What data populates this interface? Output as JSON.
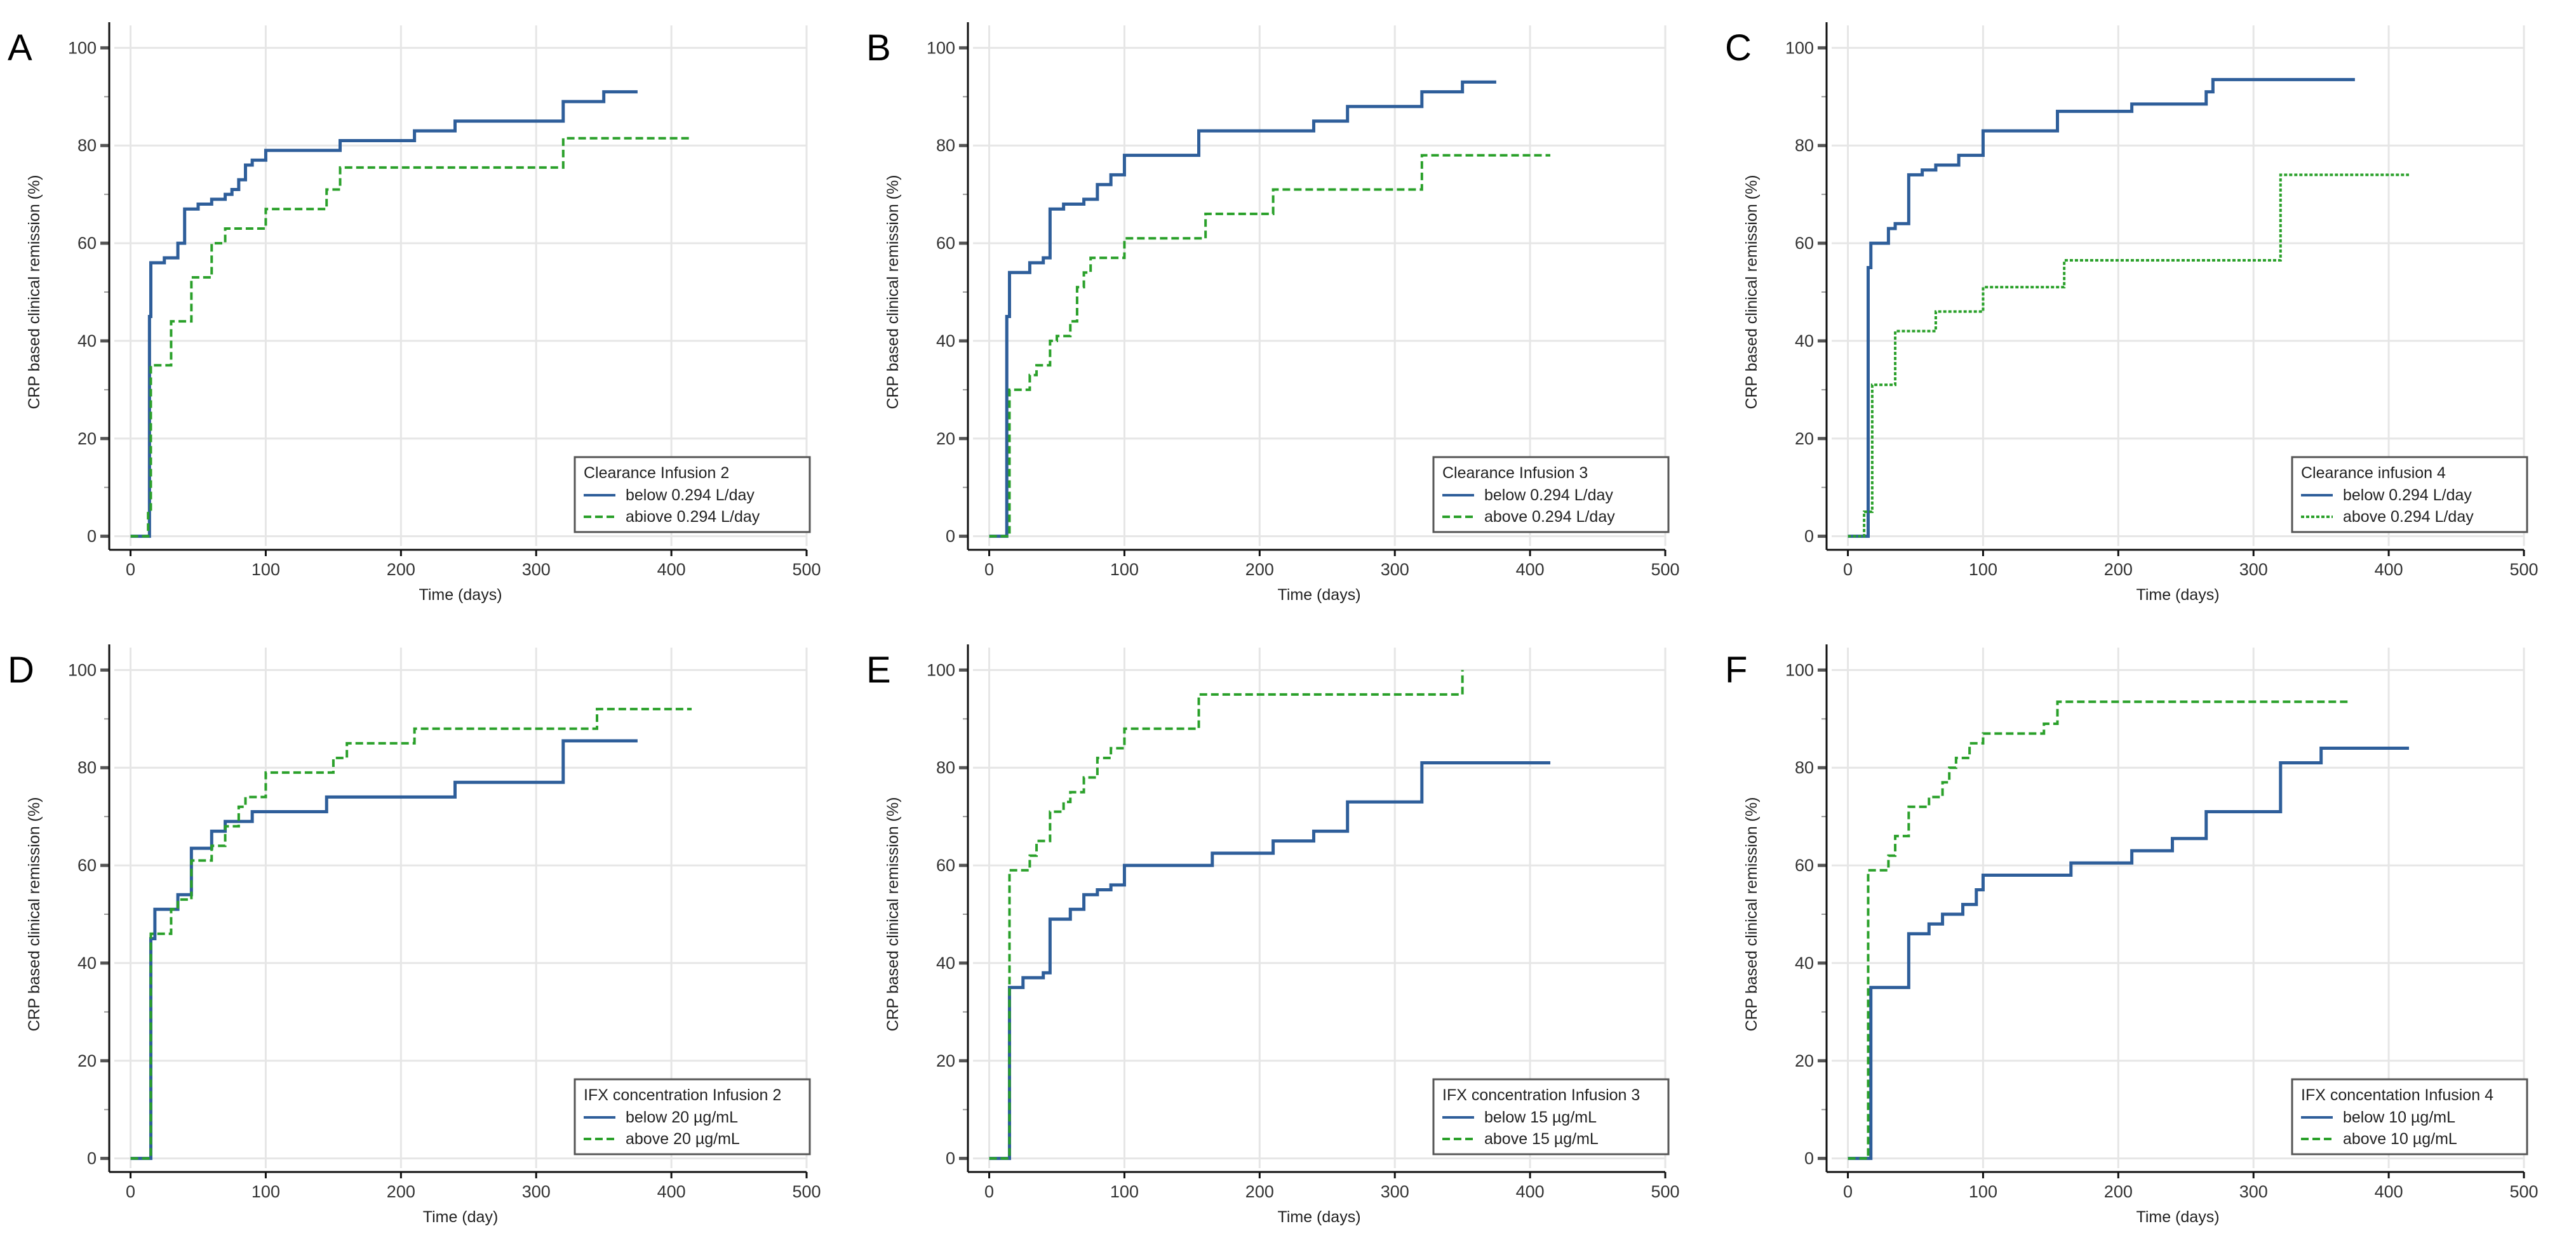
{
  "colors": {
    "below": "#2e5e9a",
    "above": "#2aa02a",
    "grid": "#e6e6e6",
    "axis": "#111111"
  },
  "chart_data": [
    {
      "panel": "A",
      "type": "line",
      "step": true,
      "xlabel": "Time (days)",
      "ylabel": "CRP based clinical remission (%)",
      "xlim": [
        0,
        500
      ],
      "ylim": [
        0,
        100
      ],
      "xticks": [
        "0",
        "100",
        "200",
        "300",
        "400",
        "500"
      ],
      "yticks": [
        "0",
        "20",
        "40",
        "60",
        "80",
        "100"
      ],
      "grid": true,
      "legend_position": "bottom-right",
      "legend_title": "Clearance Infusion 2",
      "series": [
        {
          "name": "below 0.294 L/day",
          "style": "solid",
          "x": [
            0,
            10,
            14,
            15,
            25,
            35,
            40,
            50,
            60,
            70,
            75,
            80,
            85,
            90,
            100,
            155,
            210,
            240,
            320,
            350,
            375
          ],
          "y": [
            0,
            0,
            45,
            56,
            57,
            60,
            67,
            68,
            69,
            70,
            71,
            73,
            76,
            77,
            79,
            81,
            83,
            85,
            89,
            91,
            91
          ]
        },
        {
          "name": "abiove 0.294 L/day",
          "style": "dashed",
          "x": [
            0,
            12,
            13,
            15,
            30,
            45,
            60,
            70,
            100,
            145,
            155,
            320,
            415
          ],
          "y": [
            0,
            0,
            5,
            35,
            44,
            53,
            60,
            63,
            67,
            71,
            75.5,
            81.5,
            81.5
          ]
        }
      ]
    },
    {
      "panel": "B",
      "type": "line",
      "step": true,
      "xlabel": "Time (days)",
      "ylabel": "CRP based clinical remission (%)",
      "xlim": [
        0,
        500
      ],
      "ylim": [
        0,
        100
      ],
      "xticks": [
        "0",
        "100",
        "200",
        "300",
        "400",
        "500"
      ],
      "yticks": [
        "0",
        "20",
        "40",
        "60",
        "80",
        "100"
      ],
      "grid": true,
      "legend_position": "bottom-right",
      "legend_title": "Clearance Infusion 3",
      "series": [
        {
          "name": "below 0.294 L/day",
          "style": "solid",
          "x": [
            0,
            10,
            13,
            15,
            30,
            40,
            45,
            55,
            70,
            80,
            90,
            100,
            155,
            240,
            265,
            320,
            350,
            375
          ],
          "y": [
            0,
            0,
            45,
            54,
            56,
            57,
            67,
            68,
            69,
            72,
            74,
            78,
            83,
            85,
            88,
            91,
            93,
            93
          ]
        },
        {
          "name": "above 0.294 L/day",
          "style": "dashed",
          "x": [
            0,
            12,
            15,
            30,
            35,
            45,
            50,
            60,
            65,
            70,
            75,
            100,
            160,
            210,
            320,
            415
          ],
          "y": [
            0,
            0,
            30,
            33,
            35,
            40,
            41,
            44,
            51,
            54,
            57,
            61,
            66,
            71,
            78,
            78
          ]
        }
      ]
    },
    {
      "panel": "C",
      "type": "line",
      "step": true,
      "xlabel": "Time (days)",
      "ylabel": "CRP based clinical remission (%)",
      "xlim": [
        0,
        500
      ],
      "ylim": [
        0,
        100
      ],
      "xticks": [
        "0",
        "100",
        "200",
        "300",
        "400",
        "500"
      ],
      "yticks": [
        "0",
        "20",
        "40",
        "60",
        "80",
        "100"
      ],
      "grid": true,
      "legend_position": "bottom-right",
      "legend_title": "Clearance infusion 4",
      "series": [
        {
          "name": "below 0.294 L/day",
          "style": "solid",
          "x": [
            0,
            10,
            15,
            17,
            30,
            35,
            45,
            55,
            65,
            82,
            100,
            155,
            210,
            265,
            270,
            375
          ],
          "y": [
            0,
            0,
            55,
            60,
            63,
            64,
            74,
            75,
            76,
            78,
            83,
            87,
            88.5,
            91,
            93.5,
            93.5
          ]
        },
        {
          "name": "above 0.294 L/day",
          "style": "dotted",
          "x": [
            0,
            11,
            12,
            18,
            35,
            65,
            100,
            160,
            320,
            415
          ],
          "y": [
            0,
            0,
            5,
            31,
            42,
            46,
            51,
            56.5,
            74,
            74
          ]
        }
      ]
    },
    {
      "panel": "D",
      "type": "line",
      "step": true,
      "xlabel": "Time (day)",
      "ylabel": "CRP based clinical remission (%)",
      "xlim": [
        0,
        500
      ],
      "ylim": [
        0,
        100
      ],
      "xticks": [
        "0",
        "100",
        "200",
        "300",
        "400",
        "500"
      ],
      "yticks": [
        "0",
        "20",
        "40",
        "60",
        "80",
        "100"
      ],
      "grid": true,
      "legend_position": "bottom-right",
      "legend_title": "IFX concentration Infusion 2",
      "series": [
        {
          "name": "below 20 µg/mL",
          "style": "solid",
          "x": [
            0,
            12,
            15,
            18,
            35,
            45,
            60,
            70,
            90,
            145,
            240,
            320,
            375
          ],
          "y": [
            0,
            0,
            45,
            51,
            54,
            63.5,
            67,
            69,
            71,
            74,
            77,
            85.5,
            85.5
          ]
        },
        {
          "name": "above 20 µg/mL",
          "style": "dashed",
          "x": [
            0,
            12,
            15,
            30,
            35,
            45,
            60,
            70,
            80,
            85,
            100,
            150,
            160,
            210,
            345,
            415
          ],
          "y": [
            0,
            0,
            46,
            51,
            53,
            61,
            64,
            68,
            72,
            74,
            79,
            82,
            85,
            88,
            92,
            92
          ]
        }
      ]
    },
    {
      "panel": "E",
      "type": "line",
      "step": true,
      "xlabel": "Time (days)",
      "ylabel": "CRP based clinical  remission (%)",
      "xlim": [
        0,
        500
      ],
      "ylim": [
        0,
        100
      ],
      "xticks": [
        "0",
        "100",
        "200",
        "300",
        "400",
        "500"
      ],
      "yticks": [
        "0",
        "20",
        "40",
        "60",
        "80",
        "100"
      ],
      "grid": true,
      "legend_position": "bottom-right",
      "legend_title": "IFX concentration Infusion 3",
      "series": [
        {
          "name": "below 15 µg/mL",
          "style": "solid",
          "x": [
            0,
            12,
            15,
            25,
            40,
            45,
            60,
            70,
            80,
            90,
            100,
            165,
            210,
            240,
            265,
            320,
            415
          ],
          "y": [
            0,
            0,
            35,
            37,
            38,
            49,
            51,
            54,
            55,
            56,
            60,
            62.5,
            65,
            67,
            73,
            81,
            81
          ]
        },
        {
          "name": "above 15 µg/mL",
          "style": "dashed",
          "x": [
            0,
            12,
            15,
            30,
            35,
            45,
            55,
            60,
            70,
            80,
            90,
            100,
            155,
            350
          ],
          "y": [
            0,
            0,
            59,
            62,
            65,
            71,
            73,
            75,
            78,
            82,
            84,
            88,
            95,
            100
          ]
        }
      ]
    },
    {
      "panel": "F",
      "type": "line",
      "step": true,
      "xlabel": "Time (days)",
      "ylabel": "CRP based clinical remission (%)",
      "xlim": [
        0,
        500
      ],
      "ylim": [
        0,
        100
      ],
      "xticks": [
        "0",
        "100",
        "200",
        "300",
        "400",
        "500"
      ],
      "yticks": [
        "0",
        "20",
        "40",
        "60",
        "80",
        "100"
      ],
      "grid": true,
      "legend_position": "bottom-right",
      "legend_title": "IFX concentation Infusion 4",
      "series": [
        {
          "name": "below 10 µg/mL",
          "style": "solid",
          "x": [
            0,
            14,
            17,
            45,
            60,
            70,
            85,
            95,
            100,
            165,
            210,
            240,
            265,
            320,
            350,
            415
          ],
          "y": [
            0,
            0,
            35,
            46,
            48,
            50,
            52,
            55,
            58,
            60.5,
            63,
            65.5,
            71,
            81,
            84,
            84
          ]
        },
        {
          "name": "above 10 µg/mL",
          "style": "dashed",
          "x": [
            0,
            12,
            15,
            30,
            35,
            45,
            60,
            70,
            75,
            80,
            90,
            100,
            145,
            155,
            370
          ],
          "y": [
            0,
            0,
            59,
            62,
            66,
            72,
            74,
            77,
            80,
            82,
            85,
            87,
            89,
            93.5,
            93.5
          ]
        }
      ]
    }
  ]
}
